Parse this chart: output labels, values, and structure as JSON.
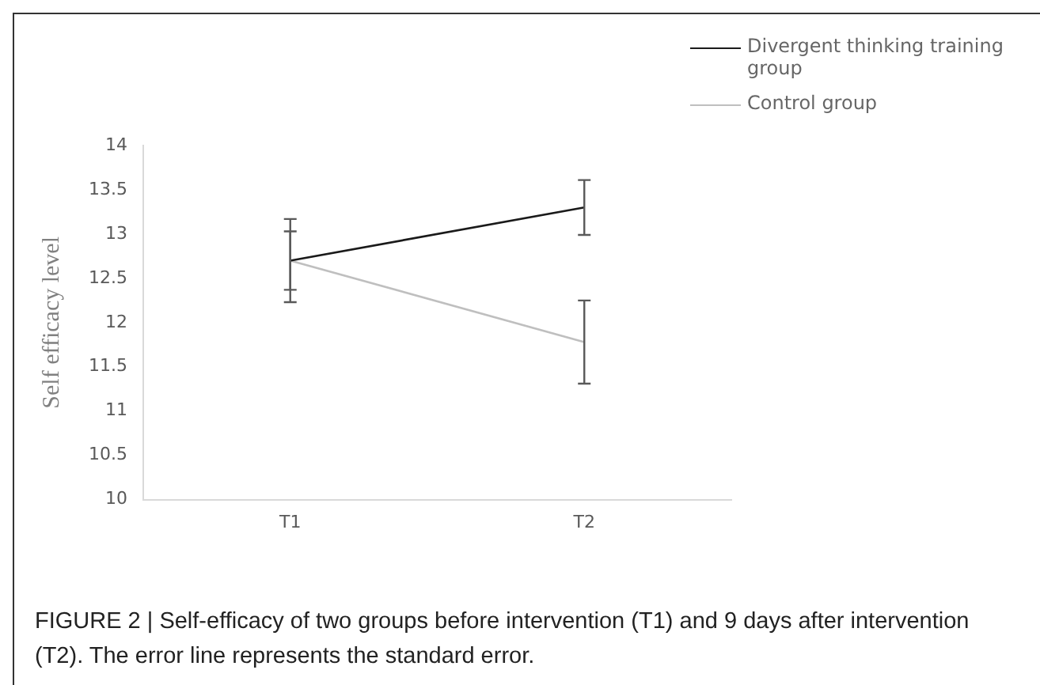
{
  "chart_data": {
    "type": "line",
    "categories": [
      "T1",
      "T2"
    ],
    "ylabel": "Self efficacy level",
    "ylim": [
      10,
      14
    ],
    "yticks": [
      10,
      {
        "value": 10.5,
        "label": "10.5"
      },
      11,
      {
        "value": 11.5,
        "label": "11.5"
      },
      12,
      {
        "value": 12.5,
        "label": "12.5"
      },
      13,
      {
        "value": 13.5,
        "label": "13.5"
      },
      14
    ],
    "grid": false,
    "legend": "top right",
    "marker": "none",
    "line_style": "solid",
    "series": [
      {
        "name": "Divergent thinking training group",
        "color": "#1a1a1a",
        "values": [
          12.7,
          13.3
        ],
        "errors": [
          0.47,
          0.31
        ]
      },
      {
        "name": "Control group",
        "color": "#bfbfbf",
        "values": [
          12.7,
          11.78
        ],
        "errors": [
          0.33,
          0.47
        ]
      }
    ],
    "annotations": [
      "FIGURE 2 | Self-efficacy of two groups before intervention (T1) and 9 days after intervention (T2). The error line represents the standard error."
    ]
  }
}
